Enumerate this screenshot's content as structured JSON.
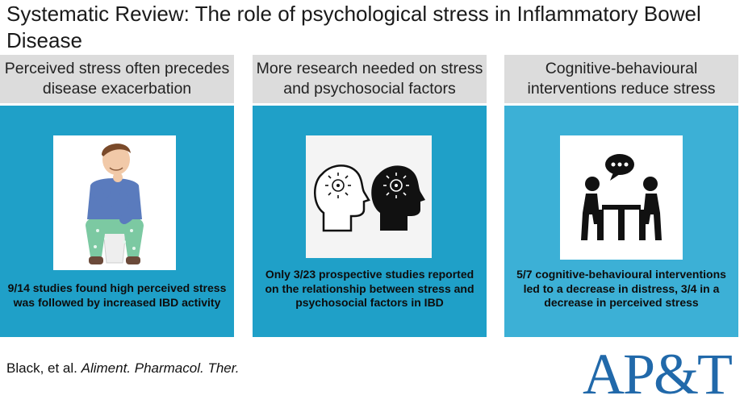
{
  "title": "Systematic Review: The role of psychological stress in Inflammatory Bowel Disease",
  "columns": [
    {
      "heading": "Perceived stress often precedes disease exacerbation",
      "image_icon": "stressed-man-on-toilet-illustration",
      "caption": "9/14 studies found high perceived stress was followed by increased IBD activity"
    },
    {
      "heading": "More research needed on stress and psychosocial factors",
      "image_icon": "two-heads-brain-icons",
      "caption": "Only 3/23 prospective studies reported on the relationship between stress and psychosocial factors in IBD"
    },
    {
      "heading": "Cognitive-behavioural interventions reduce stress",
      "image_icon": "two-people-talking-at-table-icon",
      "caption": "5/7 cognitive-behavioural interventions led to a decrease in distress, 3/4 in a decrease in perceived stress"
    }
  ],
  "citation": {
    "authors": "Black, et al.",
    "journal": "Aliment. Pharmacol. Ther."
  },
  "logo": {
    "text": "AP&T",
    "color": "#2169aa"
  },
  "colors": {
    "panel": "#1fa0c8",
    "panel_light": "#3cb0d6",
    "heading_bg": "#dcdcdc"
  }
}
